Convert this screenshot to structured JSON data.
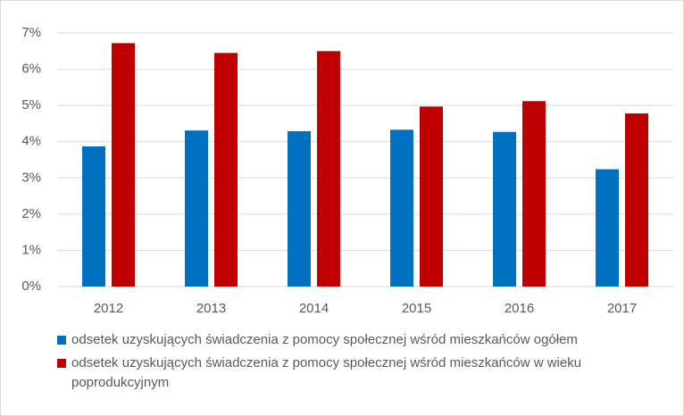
{
  "chart_data": {
    "type": "bar",
    "categories": [
      "2012",
      "2013",
      "2014",
      "2015",
      "2016",
      "2017"
    ],
    "series": [
      {
        "name": "odsetek uzyskujących świadczenia z pomocy społecznej wśród mieszkańców ogółem",
        "color": "#0070c0",
        "values": [
          3.87,
          4.31,
          4.29,
          4.33,
          4.27,
          3.24
        ]
      },
      {
        "name": "odsetek uzyskujących świadczenia z pomocy społecznej wśród mieszkańców w wieku poprodukcyjnym",
        "color": "#c00000",
        "values": [
          6.72,
          6.45,
          6.5,
          4.97,
          5.12,
          4.78
        ]
      }
    ],
    "ylim": [
      0,
      7
    ],
    "yticks": [
      {
        "value": 0,
        "label": "0%"
      },
      {
        "value": 1,
        "label": "1%"
      },
      {
        "value": 2,
        "label": "2%"
      },
      {
        "value": 3,
        "label": "3%"
      },
      {
        "value": 4,
        "label": "4%"
      },
      {
        "value": 5,
        "label": "5%"
      },
      {
        "value": 6,
        "label": "6%"
      },
      {
        "value": 7,
        "label": "7%"
      }
    ],
    "grid": true,
    "legend": "bottom"
  }
}
